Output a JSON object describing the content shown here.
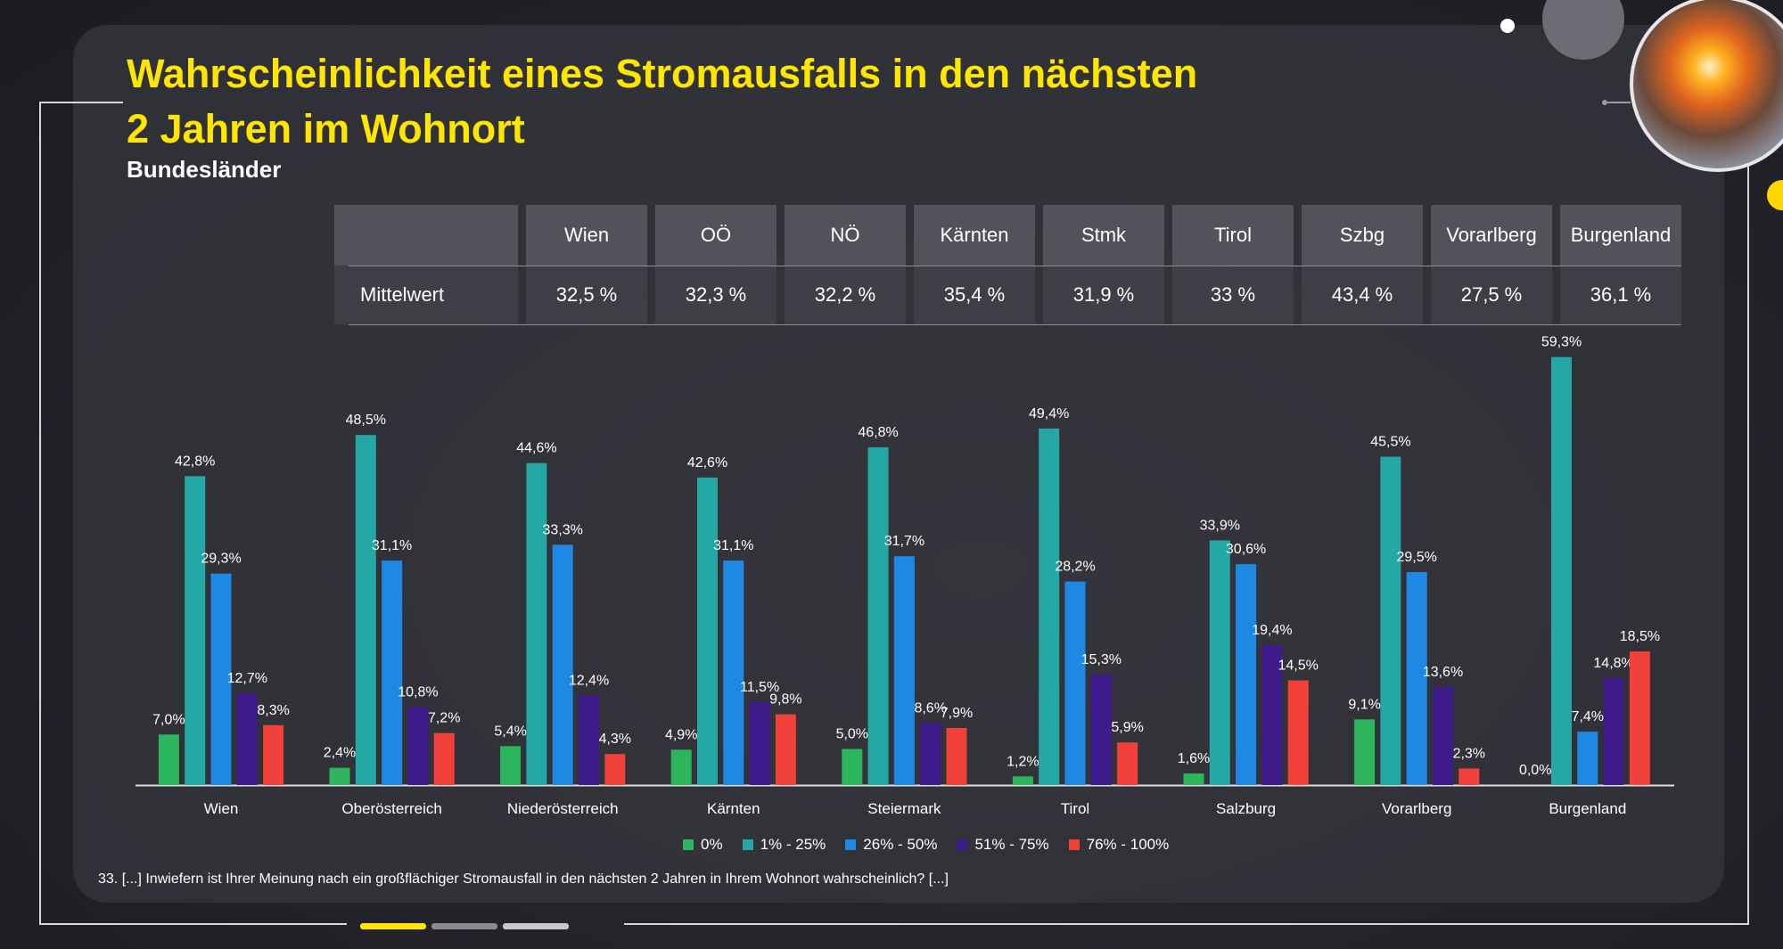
{
  "title_line1": "Wahrscheinlichkeit eines Stromausfalls in den nächsten",
  "title_line2": "2 Jahren im Wohnort",
  "subtitle": "Bundesländer",
  "table": {
    "row_label": "Mittelwert",
    "columns": [
      {
        "header": "Wien",
        "value": "32,5 %"
      },
      {
        "header": "OÖ",
        "value": "32,3 %"
      },
      {
        "header": "NÖ",
        "value": "32,2 %"
      },
      {
        "header": "Kärnten",
        "value": "35,4 %"
      },
      {
        "header": "Stmk",
        "value": "31,9 %"
      },
      {
        "header": "Tirol",
        "value": "33 %"
      },
      {
        "header": "Szbg",
        "value": "43,4 %"
      },
      {
        "header": "Vorarlberg",
        "value": "27,5 %"
      },
      {
        "header": "Burgenland",
        "value": "36,1 %"
      }
    ]
  },
  "footnote": "33. [...] Inwiefern ist Ihrer Meinung nach ein großflächiger Stromausfall in den nächsten 2 Jahren in Ihrem Wohnort wahrscheinlich? [...]",
  "chart_data": {
    "type": "bar",
    "title": "Wahrscheinlichkeit eines Stromausfalls in den nächsten 2 Jahren im Wohnort",
    "subtitle": "Bundesländer",
    "categories": [
      "Wien",
      "Oberösterreich",
      "Niederösterreich",
      "Kärnten",
      "Steiermark",
      "Tirol",
      "Salzburg",
      "Vorarlberg",
      "Burgenland"
    ],
    "ylim": [
      0,
      60
    ],
    "grid": false,
    "legend_position": "bottom",
    "series": [
      {
        "name": "0%",
        "color": "#2db55d",
        "values": [
          7.0,
          2.4,
          5.4,
          4.9,
          5.0,
          1.2,
          1.6,
          9.1,
          0.0
        ],
        "labels": [
          "7,0%",
          "2,4%",
          "5,4%",
          "4,9%",
          "5,0%",
          "1,2%",
          "1,6%",
          "9,1%",
          "0,0%"
        ]
      },
      {
        "name": "1% - 25%",
        "color": "#25a7a5",
        "values": [
          42.8,
          48.5,
          44.6,
          42.6,
          46.8,
          49.4,
          33.9,
          45.5,
          59.3
        ],
        "labels": [
          "42,8%",
          "48,5%",
          "44,6%",
          "42,6%",
          "46,8%",
          "49,4%",
          "33,9%",
          "45,5%",
          "59,3%"
        ]
      },
      {
        "name": "26% - 50%",
        "color": "#1e88e5",
        "values": [
          29.3,
          31.1,
          33.3,
          31.1,
          31.7,
          28.2,
          30.6,
          29.5,
          7.4
        ],
        "labels": [
          "29,3%",
          "31,1%",
          "33,3%",
          "31,1%",
          "31,7%",
          "28,2%",
          "30,6%",
          "29,5%",
          "7,4%"
        ]
      },
      {
        "name": "51% - 75%",
        "color": "#3e1a8a",
        "values": [
          12.7,
          10.8,
          12.4,
          11.5,
          8.6,
          15.3,
          19.4,
          13.6,
          14.8
        ],
        "labels": [
          "12,7%",
          "10,8%",
          "12,4%",
          "11,5%",
          "8,6%",
          "15,3%",
          "19,4%",
          "13,6%",
          "14,8%"
        ]
      },
      {
        "name": "76% - 100%",
        "color": "#f2403a",
        "values": [
          8.3,
          7.2,
          4.3,
          9.8,
          7.9,
          5.9,
          14.5,
          2.3,
          18.5
        ],
        "labels": [
          "8,3%",
          "7,2%",
          "4,3%",
          "9,8%",
          "7,9%",
          "5,9%",
          "14,5%",
          "2,3%",
          "18,5%"
        ]
      }
    ]
  }
}
